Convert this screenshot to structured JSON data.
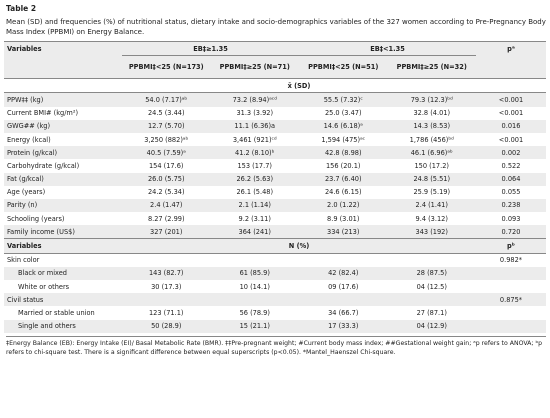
{
  "title": "Table 2",
  "caption": "Mean (SD) and frequencies (%) of nutritional status, dietary intake and socio-demographics variables of the 327 women according to Pre-Pregnancy Body Mass Index (PPBMI) on Energy Balance.",
  "table": {
    "group_header": [
      "Variables",
      "EB‡≥1.35",
      "EB‡<1.35",
      "pᵃ"
    ],
    "sub_header": [
      "PPBMI‡<25 (N=173)",
      "PPBMI‡≥25 (N=71)",
      "PPBMI‡<25 (N=51)",
      "PPBMI‡≥25 (N=32)"
    ],
    "mean_label": "x̄ (SD)",
    "rows": [
      [
        "PPW‡‡ (kg)",
        "54.0 (7.17)ᵃᵇ",
        "73.2 (8.94)ᵃᶜᵈ",
        "55.5 (7.32)ᶜ",
        "79.3 (12.3)ᵇᵈ",
        "<0.001"
      ],
      [
        "Current BMI# (kg/m²)",
        "24.5 (3.44)",
        "31.3 (3.92)",
        "25.0 (3.47)",
        "32.8 (4.01)",
        "<0.001"
      ],
      [
        "GWG## (kg)",
        "12.7 (5.70)",
        "11.1 (6.36)a",
        "14.6 (6.18)ᵃ",
        "14.3 (8.53)",
        "0.016"
      ],
      [
        "Energy (kcal)",
        "3,250 (882)ᵃᵇ",
        "3,461 (921)ᶜᵈ",
        "1,594 (475)ᵃᶜ",
        "1,786 (456)ᵇᵈ",
        "<0.001"
      ],
      [
        "Protein (g/kcal)",
        "40.5 (7.59)ᵃ",
        "41.2 (8.10)ᵇ",
        "42.8 (8.98)",
        "46.1 (6.96)ᵃᵇ",
        "0.002"
      ],
      [
        "Carbohydrate (g/kcal)",
        "154 (17.6)",
        "153 (17.7)",
        "156 (20.1)",
        "150 (17.2)",
        "0.522"
      ],
      [
        "Fat (g/kcal)",
        "26.0 (5.75)",
        "26.2 (5.63)",
        "23.7 (6.40)",
        "24.8 (5.51)",
        "0.064"
      ],
      [
        "Age (years)",
        "24.2 (5.34)",
        "26.1 (5.48)",
        "24.6 (6.15)",
        "25.9 (5.19)",
        "0.055"
      ],
      [
        "Parity (n)",
        "2.4 (1.47)",
        "2.1 (1.14)",
        "2.0 (1.22)",
        "2.4 (1.41)",
        "0.238"
      ],
      [
        "Schooling (years)",
        "8.27 (2.99)",
        "9.2 (3.11)",
        "8.9 (3.01)",
        "9.4 (3.12)",
        "0.093"
      ],
      [
        "Family income (US$)",
        "327 (201)",
        "364 (241)",
        "334 (213)",
        "343 (192)",
        "0.720"
      ]
    ],
    "freq_header": [
      "Variables",
      "N (%)",
      "pᵇ"
    ],
    "groups": [
      {
        "label": "Skin color",
        "p": "0.982*",
        "rows": [
          [
            "Black or mixed",
            "143 (82.7)",
            "61 (85.9)",
            "42 (82.4)",
            "28 (87.5)"
          ],
          [
            "White or others",
            "30 (17.3)",
            "10 (14.1)",
            "09 (17.6)",
            "04 (12.5)"
          ]
        ]
      },
      {
        "label": "Civil status",
        "p": "0.875*",
        "rows": [
          [
            "Married or stable union",
            "123 (71.1)",
            "56 (78.9)",
            "34 (66.7)",
            "27 (87.1)"
          ],
          [
            "Single and others",
            "50 (28.9)",
            "15 (21.1)",
            "17 (33.3)",
            "04 (12.9)"
          ]
        ]
      }
    ]
  },
  "footnote": "‡Energy Balance (EB): Energy Intake (EI)/ Basal Metabolic Rate (BMR). ‡‡Pre-pregnant weight; #Current body mass index; ##Gestational weight gain; ᵃp refers to ANOVA; ᵇp refers to chi-square test. There is a significant difference between equal superscripts (p<0.05). *Mantel_Haenszel Chi-square."
}
